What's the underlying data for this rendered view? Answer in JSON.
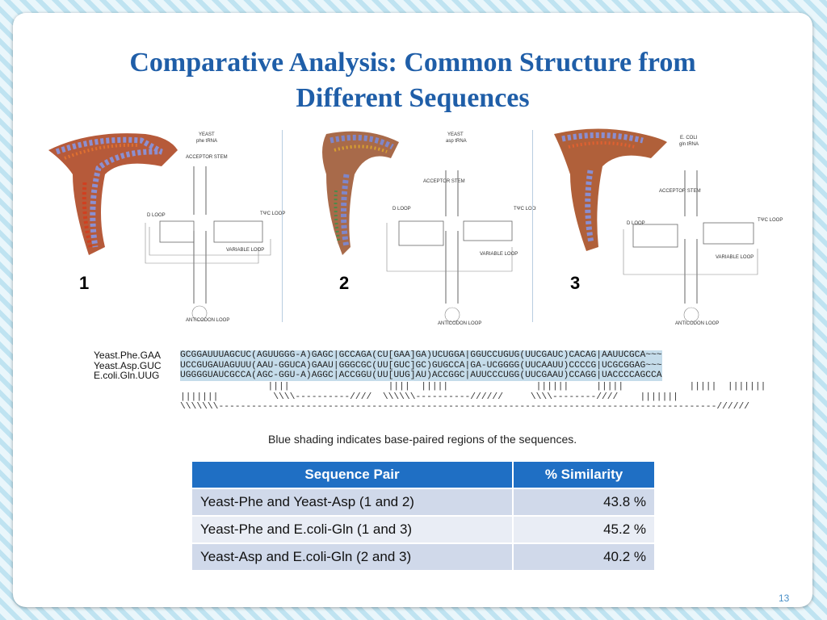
{
  "slide": {
    "title_line1": "Comparative Analysis:  Common Structure from",
    "title_line2": "Different Sequences",
    "page_number": "13"
  },
  "panels": [
    {
      "number": "1",
      "label_line1": "YEAST",
      "label_line2": "phe tRNA"
    },
    {
      "number": "2",
      "label_line1": "YEAST",
      "label_line2": "asp tRNA"
    },
    {
      "number": "3",
      "label_line1": "E. COLI",
      "label_line2": "gln tRNA"
    }
  ],
  "diagram_labels": {
    "acceptor": "ACCEPTOR STEM",
    "dloop": "D LOOP",
    "tloop": "TΨC LOOP",
    "variable": "VARIABLE LOOP",
    "anticodon": "ANTICODON LOOP"
  },
  "alignment": {
    "rows": [
      {
        "name": "Yeast.Phe.GAA",
        "sequence": "GCGGAUUUAGCUC(AGUUGGG-A)GAGC|GCCAGA(CU[GAA]GA)UCUGGA|GGUCCUGUG(UUCGAUC)CACAG|AAUUCGCA~~~"
      },
      {
        "name": "Yeast.Asp.GUC",
        "sequence": "UCCGUGAUAGUUU(AAU-GGUCA)GAAU|GGGCGC(UU[GUC]GC)GUGCCA|GA-UCGGGG(UUCAAUU)CCCCG|UCGCGGAG~~~"
      },
      {
        "name": "E.coli.Gln.UUG",
        "sequence": "UGGGGUAUCGCCA(AGC-GGU-A)AGGC|ACCGGU(UU[UUG]AU)ACCGGC|AUUCCCUGG(UUCGAAU)CCAGG|UACCCCAGCCA"
      }
    ],
    "pairing_line1": "                ||||                  ||||  |||||                ||||||     |||||            |||||  |||||||",
    "pairing_line2": "|||||||          \\\\\\\\----------////  \\\\\\\\\\\\----------//////     \\\\\\\\--------////    |||||||",
    "pairing_line3": "\\\\\\\\\\\\\\-------------------------------------------------------------------------------------------//////",
    "caption": "Blue shading indicates base-paired regions of the sequences."
  },
  "table": {
    "headers": [
      "Sequence Pair",
      "% Similarity"
    ],
    "rows": [
      {
        "pair": "Yeast-Phe and Yeast-Asp (1 and 2)",
        "similarity": "43.8 %"
      },
      {
        "pair": "Yeast-Phe and E.coli-Gln (1 and 3)",
        "similarity": "45.2 %"
      },
      {
        "pair": "Yeast-Asp and E.coli-Gln (2 and 3)",
        "similarity": "40.2 %"
      }
    ]
  },
  "colors": {
    "title": "#1f5ea8",
    "table_header": "#1f6fc4",
    "highlight": "#c5dcea"
  }
}
